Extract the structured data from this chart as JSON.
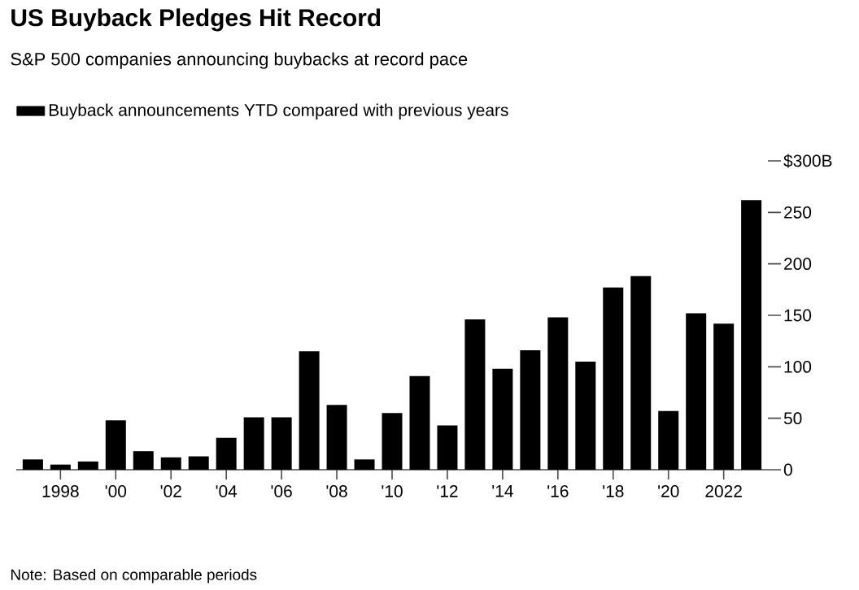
{
  "chart_data": {
    "type": "bar",
    "title": "US Buyback Pledges Hit Record",
    "subtitle": "S&P 500 companies announcing buybacks at record pace",
    "categories": [
      null,
      "1998",
      null,
      "'00",
      null,
      "'02",
      null,
      "'04",
      null,
      "'06",
      null,
      "'08",
      null,
      "'10",
      null,
      "'12",
      null,
      "'14",
      null,
      "'16",
      null,
      "'18",
      null,
      "'20",
      null,
      "2022",
      null
    ],
    "series": [
      {
        "name": "Buyback announcements YTD compared with previous years",
        "color": "#000000",
        "values": [
          10,
          5,
          8,
          48,
          18,
          12,
          13,
          31,
          51,
          51,
          115,
          63,
          10,
          55,
          91,
          43,
          146,
          98,
          116,
          148,
          105,
          177,
          188,
          57,
          152,
          142,
          262
        ]
      }
    ],
    "ylim": [
      0,
      300
    ],
    "yticks": [
      0,
      50,
      100,
      150,
      200,
      250,
      {
        "value": 300,
        "label": "$300B"
      }
    ],
    "legend": "top left",
    "annotations": [
      "Note: Based on comparable periods"
    ]
  }
}
